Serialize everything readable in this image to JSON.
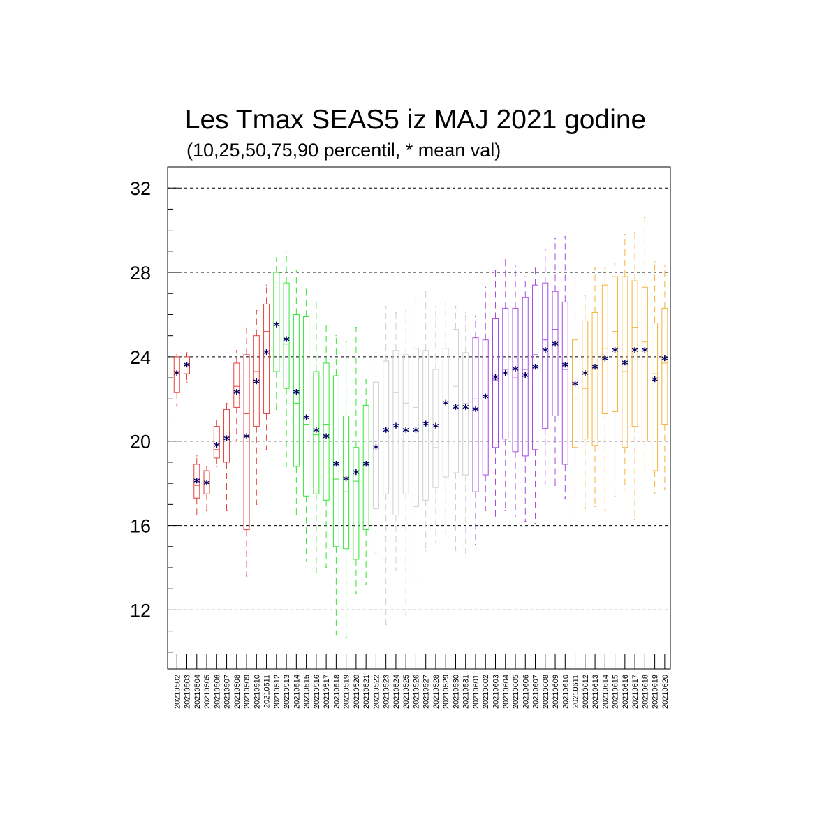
{
  "title": "Les Tmax SEAS5 iz MAJ 2021 godine",
  "subtitle": "(10,25,50,75,90 percentil, * mean val)",
  "colors": {
    "may_early": "#e8413b",
    "may_mid": "#33e633",
    "may_late": "#cfcfcf",
    "june_early": "#a64ce6",
    "june_late": "#f5b33b",
    "mean_marker": "#000066",
    "grid": "#000000"
  },
  "chart_data": {
    "type": "boxplot",
    "ylim": [
      9.2,
      33
    ],
    "y_ticks": [
      12,
      16,
      20,
      24,
      28,
      32
    ],
    "y_tick_labels": [
      "12",
      "16",
      "20",
      "24",
      "28",
      "32"
    ],
    "grid": "dashed horizontal at major ticks",
    "mean_marker": "*",
    "categories": [
      "20210502",
      "20210503",
      "20210504",
      "20210505",
      "20210506",
      "20210507",
      "20210508",
      "20210509",
      "20210510",
      "20210511",
      "20210512",
      "20210513",
      "20210514",
      "20210515",
      "20210516",
      "20210517",
      "20210518",
      "20210519",
      "20210520",
      "20210521",
      "20210522",
      "20210523",
      "20210524",
      "20210525",
      "20210526",
      "20210527",
      "20210528",
      "20210529",
      "20210530",
      "20210531",
      "20210601",
      "20210602",
      "20210603",
      "20210604",
      "20210605",
      "20210606",
      "20210607",
      "20210608",
      "20210609",
      "20210610",
      "20210611",
      "20210612",
      "20210613",
      "20210614",
      "20210615",
      "20210616",
      "20210617",
      "20210618",
      "20210619",
      "20210620"
    ],
    "color_groups": [
      "may_early",
      "may_early",
      "may_early",
      "may_early",
      "may_early",
      "may_early",
      "may_early",
      "may_early",
      "may_early",
      "may_early",
      "may_mid",
      "may_mid",
      "may_mid",
      "may_mid",
      "may_mid",
      "may_mid",
      "may_mid",
      "may_mid",
      "may_mid",
      "may_mid",
      "may_late",
      "may_late",
      "may_late",
      "may_late",
      "may_late",
      "may_late",
      "may_late",
      "may_late",
      "may_late",
      "may_late",
      "june_early",
      "june_early",
      "june_early",
      "june_early",
      "june_early",
      "june_early",
      "june_early",
      "june_early",
      "june_early",
      "june_early",
      "june_late",
      "june_late",
      "june_late",
      "june_late",
      "june_late",
      "june_late",
      "june_late",
      "june_late",
      "june_late",
      "june_late"
    ],
    "p10": [
      21.7,
      22.8,
      16.5,
      16.7,
      18.8,
      16.7,
      20.0,
      13.6,
      17.0,
      19.6,
      21.5,
      18.8,
      16.4,
      14.3,
      13.8,
      14.0,
      10.8,
      10.7,
      12.8,
      13.2,
      14.7,
      11.3,
      13.9,
      11.8,
      13.4,
      14.8,
      15.2,
      15.6,
      14.8,
      14.5,
      15.1,
      16.7,
      16.4,
      16.7,
      16.4,
      16.2,
      16.1,
      18.0,
      17.9,
      17.3,
      16.4,
      16.8,
      16.9,
      16.7,
      17.4,
      17.7,
      16.3,
      18.6,
      17.5,
      17.7
    ],
    "p25": [
      22.3,
      23.2,
      17.3,
      17.5,
      19.2,
      19.0,
      21.6,
      15.8,
      20.7,
      21.3,
      23.3,
      22.5,
      18.8,
      17.4,
      17.5,
      17.2,
      15.0,
      14.9,
      14.4,
      15.8,
      16.8,
      17.5,
      16.5,
      17.5,
      16.9,
      17.2,
      17.8,
      18.3,
      18.5,
      18.4,
      17.6,
      18.4,
      19.7,
      20.1,
      19.5,
      19.3,
      19.6,
      20.6,
      21.2,
      18.9,
      19.7,
      20.1,
      19.8,
      21.3,
      21.4,
      19.7,
      20.7,
      20.0,
      18.6,
      20.8
    ],
    "p50": [
      23.3,
      23.6,
      17.9,
      18.0,
      19.6,
      20.9,
      22.6,
      21.3,
      23.3,
      25.2,
      25.6,
      24.6,
      21.8,
      20.8,
      20.3,
      20.8,
      18.2,
      17.6,
      18.1,
      19.0,
      19.7,
      21.1,
      22.3,
      21.8,
      21.6,
      21.0,
      19.7,
      20.9,
      22.6,
      21.8,
      22.0,
      21.0,
      22.9,
      23.4,
      23.0,
      23.4,
      24.1,
      24.8,
      25.3,
      23.4,
      22.0,
      22.5,
      23.4,
      24.4,
      25.2,
      23.3,
      25.4,
      24.7,
      23.2,
      23.7
    ],
    "p75": [
      24.0,
      24.0,
      18.9,
      18.6,
      20.7,
      21.5,
      23.7,
      24.1,
      25.0,
      26.5,
      28.0,
      27.5,
      26.0,
      25.9,
      23.3,
      23.7,
      23.1,
      21.2,
      19.7,
      21.7,
      22.8,
      23.8,
      24.3,
      24.1,
      24.4,
      24.3,
      23.4,
      24.4,
      25.3,
      24.2,
      24.9,
      24.8,
      25.8,
      26.3,
      26.3,
      26.8,
      27.4,
      27.5,
      27.1,
      26.6,
      24.8,
      25.7,
      26.1,
      27.4,
      27.8,
      27.8,
      27.6,
      27.3,
      25.6,
      26.3
    ],
    "p90": [
      24.1,
      24.2,
      19.3,
      18.8,
      21.1,
      21.8,
      24.3,
      25.5,
      26.2,
      27.4,
      28.7,
      29.0,
      28.1,
      27.2,
      26.6,
      25.7,
      25.0,
      24.7,
      25.4,
      22.9,
      24.2,
      26.4,
      26.1,
      26.2,
      26.8,
      27.1,
      26.4,
      26.6,
      26.4,
      26.1,
      25.9,
      27.3,
      28.1,
      28.6,
      28.3,
      27.8,
      28.2,
      29.1,
      29.6,
      29.7,
      27.7,
      26.9,
      28.2,
      28.2,
      28.4,
      29.8,
      29.9,
      30.6,
      28.5,
      28.3
    ],
    "mean": [
      23.2,
      23.6,
      18.1,
      18.0,
      19.8,
      20.1,
      22.3,
      20.2,
      22.8,
      24.2,
      25.5,
      24.8,
      22.3,
      21.1,
      20.5,
      20.2,
      18.9,
      18.2,
      18.5,
      18.9,
      19.7,
      20.5,
      20.7,
      20.5,
      20.5,
      20.8,
      20.7,
      21.8,
      21.6,
      21.6,
      21.5,
      22.1,
      23.0,
      23.2,
      23.4,
      23.1,
      23.5,
      24.3,
      24.6,
      23.6,
      22.7,
      23.2,
      23.5,
      23.9,
      24.3,
      23.7,
      24.3,
      24.3,
      22.9,
      23.9
    ]
  }
}
